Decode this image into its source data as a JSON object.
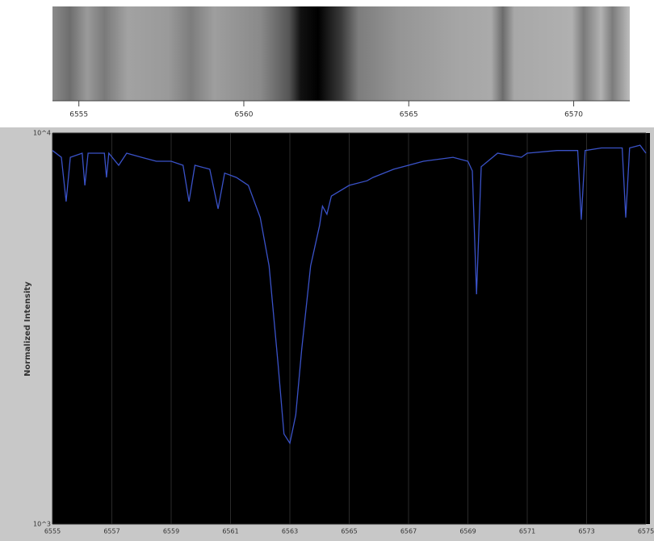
{
  "chart_data": [
    {
      "type": "spectrum-strip",
      "xlim": [
        6554.2,
        6571.7
      ],
      "xticks": [
        6555,
        6560,
        6565,
        6570
      ]
    },
    {
      "type": "line",
      "ylabel": "Normalized Intensity",
      "log_y": true,
      "grid": true,
      "color": "#3a52c8",
      "xlim": [
        6555,
        6575
      ],
      "xticks": [
        6555,
        6557,
        6559,
        6561,
        6563,
        6565,
        6567,
        6569,
        6571,
        6573,
        6575
      ],
      "ylim": [
        1000,
        10000
      ],
      "yticks": [
        {
          "value": 1000,
          "label": "10^3"
        },
        {
          "value": 10000,
          "label": "10^4"
        }
      ],
      "x": [
        6555.0,
        6555.3,
        6555.46,
        6555.6,
        6556.0,
        6556.09,
        6556.2,
        6556.75,
        6556.82,
        6556.9,
        6557.23,
        6557.5,
        6558.0,
        6558.5,
        6559.0,
        6559.4,
        6559.6,
        6559.8,
        6560.3,
        6560.58,
        6560.8,
        6561.2,
        6561.6,
        6562.0,
        6562.3,
        6562.6,
        6562.8,
        6563.0,
        6563.2,
        6563.4,
        6563.7,
        6564.0,
        6564.1,
        6564.25,
        6564.4,
        6565.0,
        6565.6,
        6565.8,
        6566.5,
        6567.5,
        6568.5,
        6569.0,
        6569.15,
        6569.29,
        6569.45,
        6570.0,
        6570.8,
        6571.0,
        6572.0,
        6572.7,
        6572.82,
        6572.95,
        6573.5,
        6574.2,
        6574.32,
        6574.45,
        6574.8,
        6575.0
      ],
      "values": [
        9020,
        8670,
        6680,
        8670,
        8880,
        7350,
        8880,
        8880,
        7700,
        8880,
        8270,
        8880,
        8670,
        8470,
        8470,
        8270,
        6680,
        8270,
        8080,
        6400,
        7900,
        7700,
        7350,
        6080,
        4570,
        2580,
        1700,
        1610,
        1900,
        2800,
        4570,
        5800,
        6500,
        6200,
        6900,
        7350,
        7550,
        7700,
        8080,
        8470,
        8670,
        8470,
        8000,
        3870,
        8200,
        8880,
        8670,
        8880,
        9020,
        9020,
        6000,
        9020,
        9160,
        9160,
        6080,
        9160,
        9310,
        8880
      ]
    }
  ]
}
